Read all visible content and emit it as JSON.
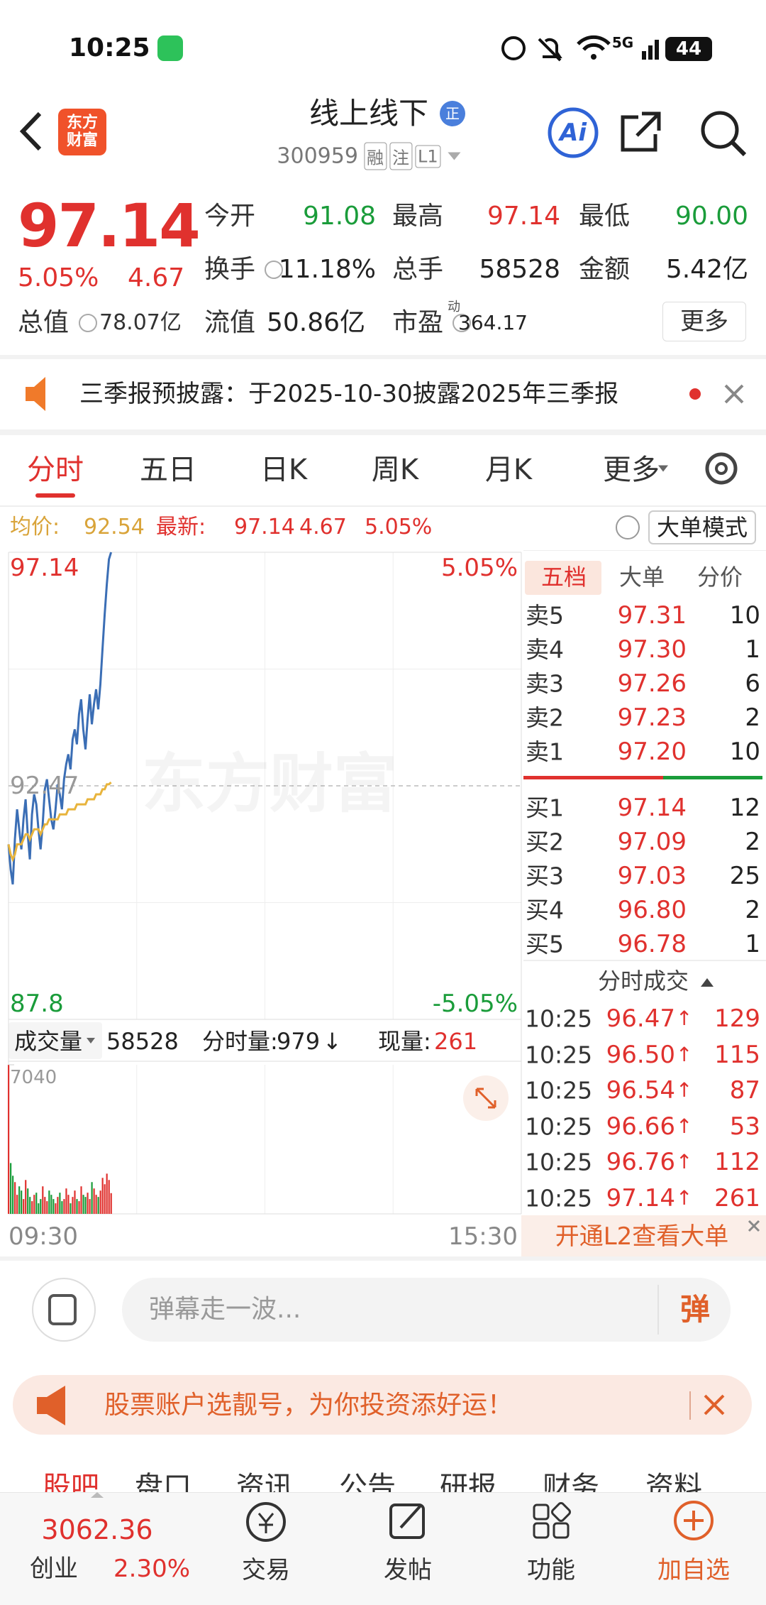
{
  "status_bar": {
    "time": "10:25",
    "network": "5G",
    "battery": "44"
  },
  "header": {
    "logo": "东方财富",
    "title": "线上线下",
    "badge": "正",
    "code": "300959",
    "tags": [
      "融",
      "注",
      "L1"
    ],
    "ai": "Ai"
  },
  "quote": {
    "price": "97.14",
    "change_pct": "5.05%",
    "change": "4.67",
    "total_value": {
      "label": "总值",
      "value": "78.07亿"
    },
    "fields": [
      {
        "label": "今开",
        "value": "91.08",
        "color": "#1a9c3a"
      },
      {
        "label": "最高",
        "value": "97.14",
        "color": "#e0312e"
      },
      {
        "label": "最低",
        "value": "90.00",
        "color": "#1a9c3a"
      },
      {
        "label": "换手",
        "value": "11.18%",
        "color": "#222222"
      },
      {
        "label": "总手",
        "value": "58528",
        "color": "#222222"
      },
      {
        "label": "金额",
        "value": "5.42亿",
        "color": "#222222"
      },
      {
        "label": "流值",
        "value": "50.86亿",
        "color": "#222222"
      },
      {
        "label": "市盈",
        "sup": "动",
        "value": "364.17",
        "color": "#222222"
      }
    ],
    "more": "更多"
  },
  "notice": {
    "text": "三季报预披露：于2025-10-30披露2025年三季报"
  },
  "tabs": [
    "分时",
    "五日",
    "日K",
    "周K",
    "月K",
    "更多"
  ],
  "info": {
    "avg_label": "均价:",
    "avg": "92.54",
    "latest_label": "最新:",
    "latest": "97.14",
    "change": "4.67",
    "change_pct": "5.05%",
    "mode": "大单模式"
  },
  "watermark": "东方财富",
  "chart_data": [
    {
      "type": "line",
      "ylim": [
        87.8,
        97.14
      ],
      "yticks": [
        97.14,
        92.47,
        87.8
      ],
      "y2lim": [
        -5.05,
        5.05
      ],
      "y2ticks": [
        {
          "value": 5.05,
          "label": "5.05%"
        },
        {
          "value": -5.05,
          "label": "-5.05%"
        }
      ],
      "xlim": [
        0,
        240
      ],
      "xticks": [
        {
          "value": 0,
          "label": "09:30"
        },
        {
          "value": 240,
          "label": "15:30"
        }
      ],
      "x": [
        0,
        1,
        2,
        3,
        4,
        5,
        6,
        7,
        8,
        9,
        10,
        11,
        12,
        13,
        14,
        15,
        16,
        17,
        18,
        19,
        20,
        21,
        22,
        23,
        24,
        25,
        26,
        27,
        28,
        29,
        30,
        31,
        32,
        33,
        34,
        35,
        36,
        37,
        38,
        39,
        40,
        41,
        42,
        43,
        44,
        45,
        46,
        47,
        48
      ],
      "series": [
        {
          "color": "#3b6eb5",
          "values": [
            91.3,
            90.8,
            90.5,
            91.4,
            92.0,
            91.6,
            91.2,
            91.8,
            92.2,
            91.5,
            91.0,
            91.9,
            92.3,
            92.1,
            91.6,
            91.2,
            91.7,
            92.4,
            92.6,
            92.2,
            91.8,
            91.6,
            92.0,
            92.5,
            92.3,
            92.0,
            92.6,
            92.9,
            93.1,
            92.8,
            93.4,
            93.6,
            93.3,
            93.9,
            94.2,
            93.6,
            93.2,
            93.8,
            94.3,
            93.7,
            94.1,
            94.4,
            94.0,
            94.5,
            95.2,
            95.9,
            96.5,
            97.0,
            97.14
          ]
        },
        {
          "color": "#e8b43c",
          "values": [
            91.3,
            91.1,
            91.0,
            91.1,
            91.3,
            91.3,
            91.3,
            91.4,
            91.5,
            91.5,
            91.4,
            91.5,
            91.6,
            91.6,
            91.6,
            91.5,
            91.6,
            91.7,
            91.7,
            91.8,
            91.8,
            91.8,
            91.8,
            91.8,
            91.9,
            91.9,
            91.9,
            91.9,
            92.0,
            92.0,
            92.0,
            92.0,
            92.1,
            92.1,
            92.1,
            92.1,
            92.1,
            92.2,
            92.2,
            92.2,
            92.2,
            92.3,
            92.3,
            92.3,
            92.4,
            92.4,
            92.5,
            92.5,
            92.54
          ]
        }
      ]
    },
    {
      "type": "bar",
      "title": "成交量",
      "total": "58528",
      "minute_label": "分时量:",
      "minute_value": "979",
      "minute_dir": "↓",
      "now_label": "现量:",
      "now_value": "261",
      "ylim": [
        0,
        7040
      ],
      "yticks": [
        7040
      ],
      "up_color": "#e0312e",
      "down_color": "#1a9c3a",
      "values": [
        7040,
        2400,
        1800,
        1500,
        900,
        1300,
        1100,
        700,
        1600,
        1200,
        800,
        600,
        900,
        1000,
        500,
        700,
        1300,
        800,
        600,
        1100,
        900,
        700,
        500,
        800,
        1000,
        600,
        700,
        1200,
        900,
        500,
        800,
        1100,
        700,
        600,
        1300,
        900,
        800,
        1000,
        700,
        1500,
        1200,
        900,
        800,
        1100,
        1700,
        1400,
        1900,
        1600,
        979
      ]
    }
  ],
  "order_book": {
    "tabs": [
      "五档",
      "大单",
      "分价"
    ],
    "asks": [
      {
        "label": "卖5",
        "price": "97.31",
        "vol": "10"
      },
      {
        "label": "卖4",
        "price": "97.30",
        "vol": "1"
      },
      {
        "label": "卖3",
        "price": "97.26",
        "vol": "6"
      },
      {
        "label": "卖2",
        "price": "97.23",
        "vol": "2"
      },
      {
        "label": "卖1",
        "price": "97.20",
        "vol": "10"
      }
    ],
    "bids": [
      {
        "label": "买1",
        "price": "97.14",
        "vol": "12"
      },
      {
        "label": "买2",
        "price": "97.09",
        "vol": "2"
      },
      {
        "label": "买3",
        "price": "97.03",
        "vol": "25"
      },
      {
        "label": "买4",
        "price": "96.80",
        "vol": "2"
      },
      {
        "label": "买5",
        "price": "96.78",
        "vol": "1"
      }
    ],
    "trades_title": "分时成交",
    "trades": [
      {
        "time": "10:25",
        "price": "96.47",
        "dir": "↑",
        "vol": "129"
      },
      {
        "time": "10:25",
        "price": "96.50",
        "dir": "↑",
        "vol": "115"
      },
      {
        "time": "10:25",
        "price": "96.54",
        "dir": "↑",
        "vol": "87"
      },
      {
        "time": "10:25",
        "price": "96.66",
        "dir": "↑",
        "vol": "53"
      },
      {
        "time": "10:25",
        "price": "96.76",
        "dir": "↑",
        "vol": "112"
      },
      {
        "time": "10:25",
        "price": "97.14",
        "dir": "↑",
        "vol": "261"
      }
    ],
    "l2": "开通L2查看大单"
  },
  "comment": {
    "placeholder": "弹幕走一波...",
    "button": "弹"
  },
  "banner": {
    "text": "股票账户选靓号，为你投资添好运！"
  },
  "sub_tabs": [
    "股吧",
    "盘口",
    "资讯",
    "公告",
    "研报",
    "财务",
    "资料"
  ],
  "bottom_nav": {
    "index_value": "3062.36",
    "index_name": "创业",
    "index_pct": "2.30%",
    "items": [
      "交易",
      "发帖",
      "功能",
      "加自选"
    ]
  }
}
